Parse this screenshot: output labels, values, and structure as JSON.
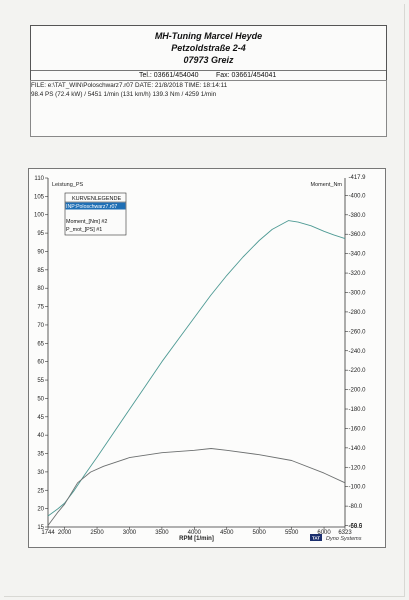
{
  "header": {
    "company": "MH-Tuning Marcel Heyde",
    "street": "Petzoldstraße 2-4",
    "city": "07973 Greiz",
    "phone": "Tel.: 03661/454040",
    "fax": "Fax: 03661/454041"
  },
  "file_info": {
    "line1": "FILE: e:\\TAT_WIN\\Poloschwarz7.r07  DATE: 21/8/2018  TIME: 18:14:11",
    "line2": "98.4 PS  (72.4 kW) / 5451 1/min (131 km/h)    139.3 Nm / 4259 1/min"
  },
  "legend": {
    "title": "KURVENLEGENDE",
    "selected": "INP:Poloschwarz7.r07",
    "items": [
      "Moment_[Nm] #2",
      "P_mot_[PS] #1"
    ]
  },
  "branding": {
    "logo_text": "TAT",
    "name": "Dyno Systems"
  },
  "colors": {
    "power_curve": "#4e9a94",
    "torque_curve": "#6d7070",
    "legend_highlight": "#1f6fb5"
  },
  "chart_data": {
    "type": "line",
    "xlabel": "RPM  [1/min]",
    "x_ticks": [
      "1744",
      "2000",
      "2500",
      "3000",
      "3500",
      "4000",
      "4500",
      "5000",
      "5500",
      "6000",
      "6323"
    ],
    "xlim": [
      1744,
      6323
    ],
    "y_left_label": "Leistung_PS",
    "ylim_left": [
      15,
      110
    ],
    "y_left_ticks": [
      "15",
      "20",
      "25",
      "30",
      "35",
      "40",
      "45",
      "50",
      "55",
      "60",
      "65",
      "70",
      "75",
      "80",
      "85",
      "90",
      "95",
      "100",
      "105",
      "110"
    ],
    "y_right_label": "Moment_Nm",
    "ylim_right": [
      58.5,
      417.9
    ],
    "y_right_ticks": [
      "60.0",
      "80.0",
      "100.0",
      "120.0",
      "140.0",
      "160.0",
      "180.0",
      "200.0",
      "220.0",
      "240.0",
      "260.0",
      "280.0",
      "300.0",
      "320.0",
      "340.0",
      "360.0",
      "380.0",
      "400.0"
    ],
    "y_right_extremes": [
      "417.9",
      "58.5"
    ],
    "series": [
      {
        "name": "P_mot_[PS] #1",
        "axis": "left",
        "x": [
          1744,
          1900,
          2000,
          2150,
          2300,
          2500,
          2750,
          3000,
          3250,
          3500,
          3750,
          4000,
          4250,
          4500,
          4750,
          5000,
          5200,
          5451,
          5600,
          5800,
          6000,
          6150,
          6323
        ],
        "values": [
          18,
          20,
          21.5,
          25,
          29,
          34,
          40.5,
          47,
          53.5,
          60,
          66,
          72,
          78,
          83.5,
          88.5,
          93,
          96,
          98.4,
          98,
          97,
          95.5,
          94.5,
          93.5
        ]
      },
      {
        "name": "Moment_[Nm] #2",
        "axis": "right",
        "x": [
          1744,
          1900,
          2000,
          2200,
          2400,
          2600,
          3000,
          3500,
          4000,
          4259,
          4500,
          5000,
          5500,
          6000,
          6323
        ],
        "values": [
          60,
          74,
          82,
          104,
          115,
          121,
          130,
          135,
          137.5,
          139.3,
          137.5,
          133,
          127,
          114,
          104
        ]
      }
    ],
    "grid": false,
    "legend": "top-left"
  }
}
